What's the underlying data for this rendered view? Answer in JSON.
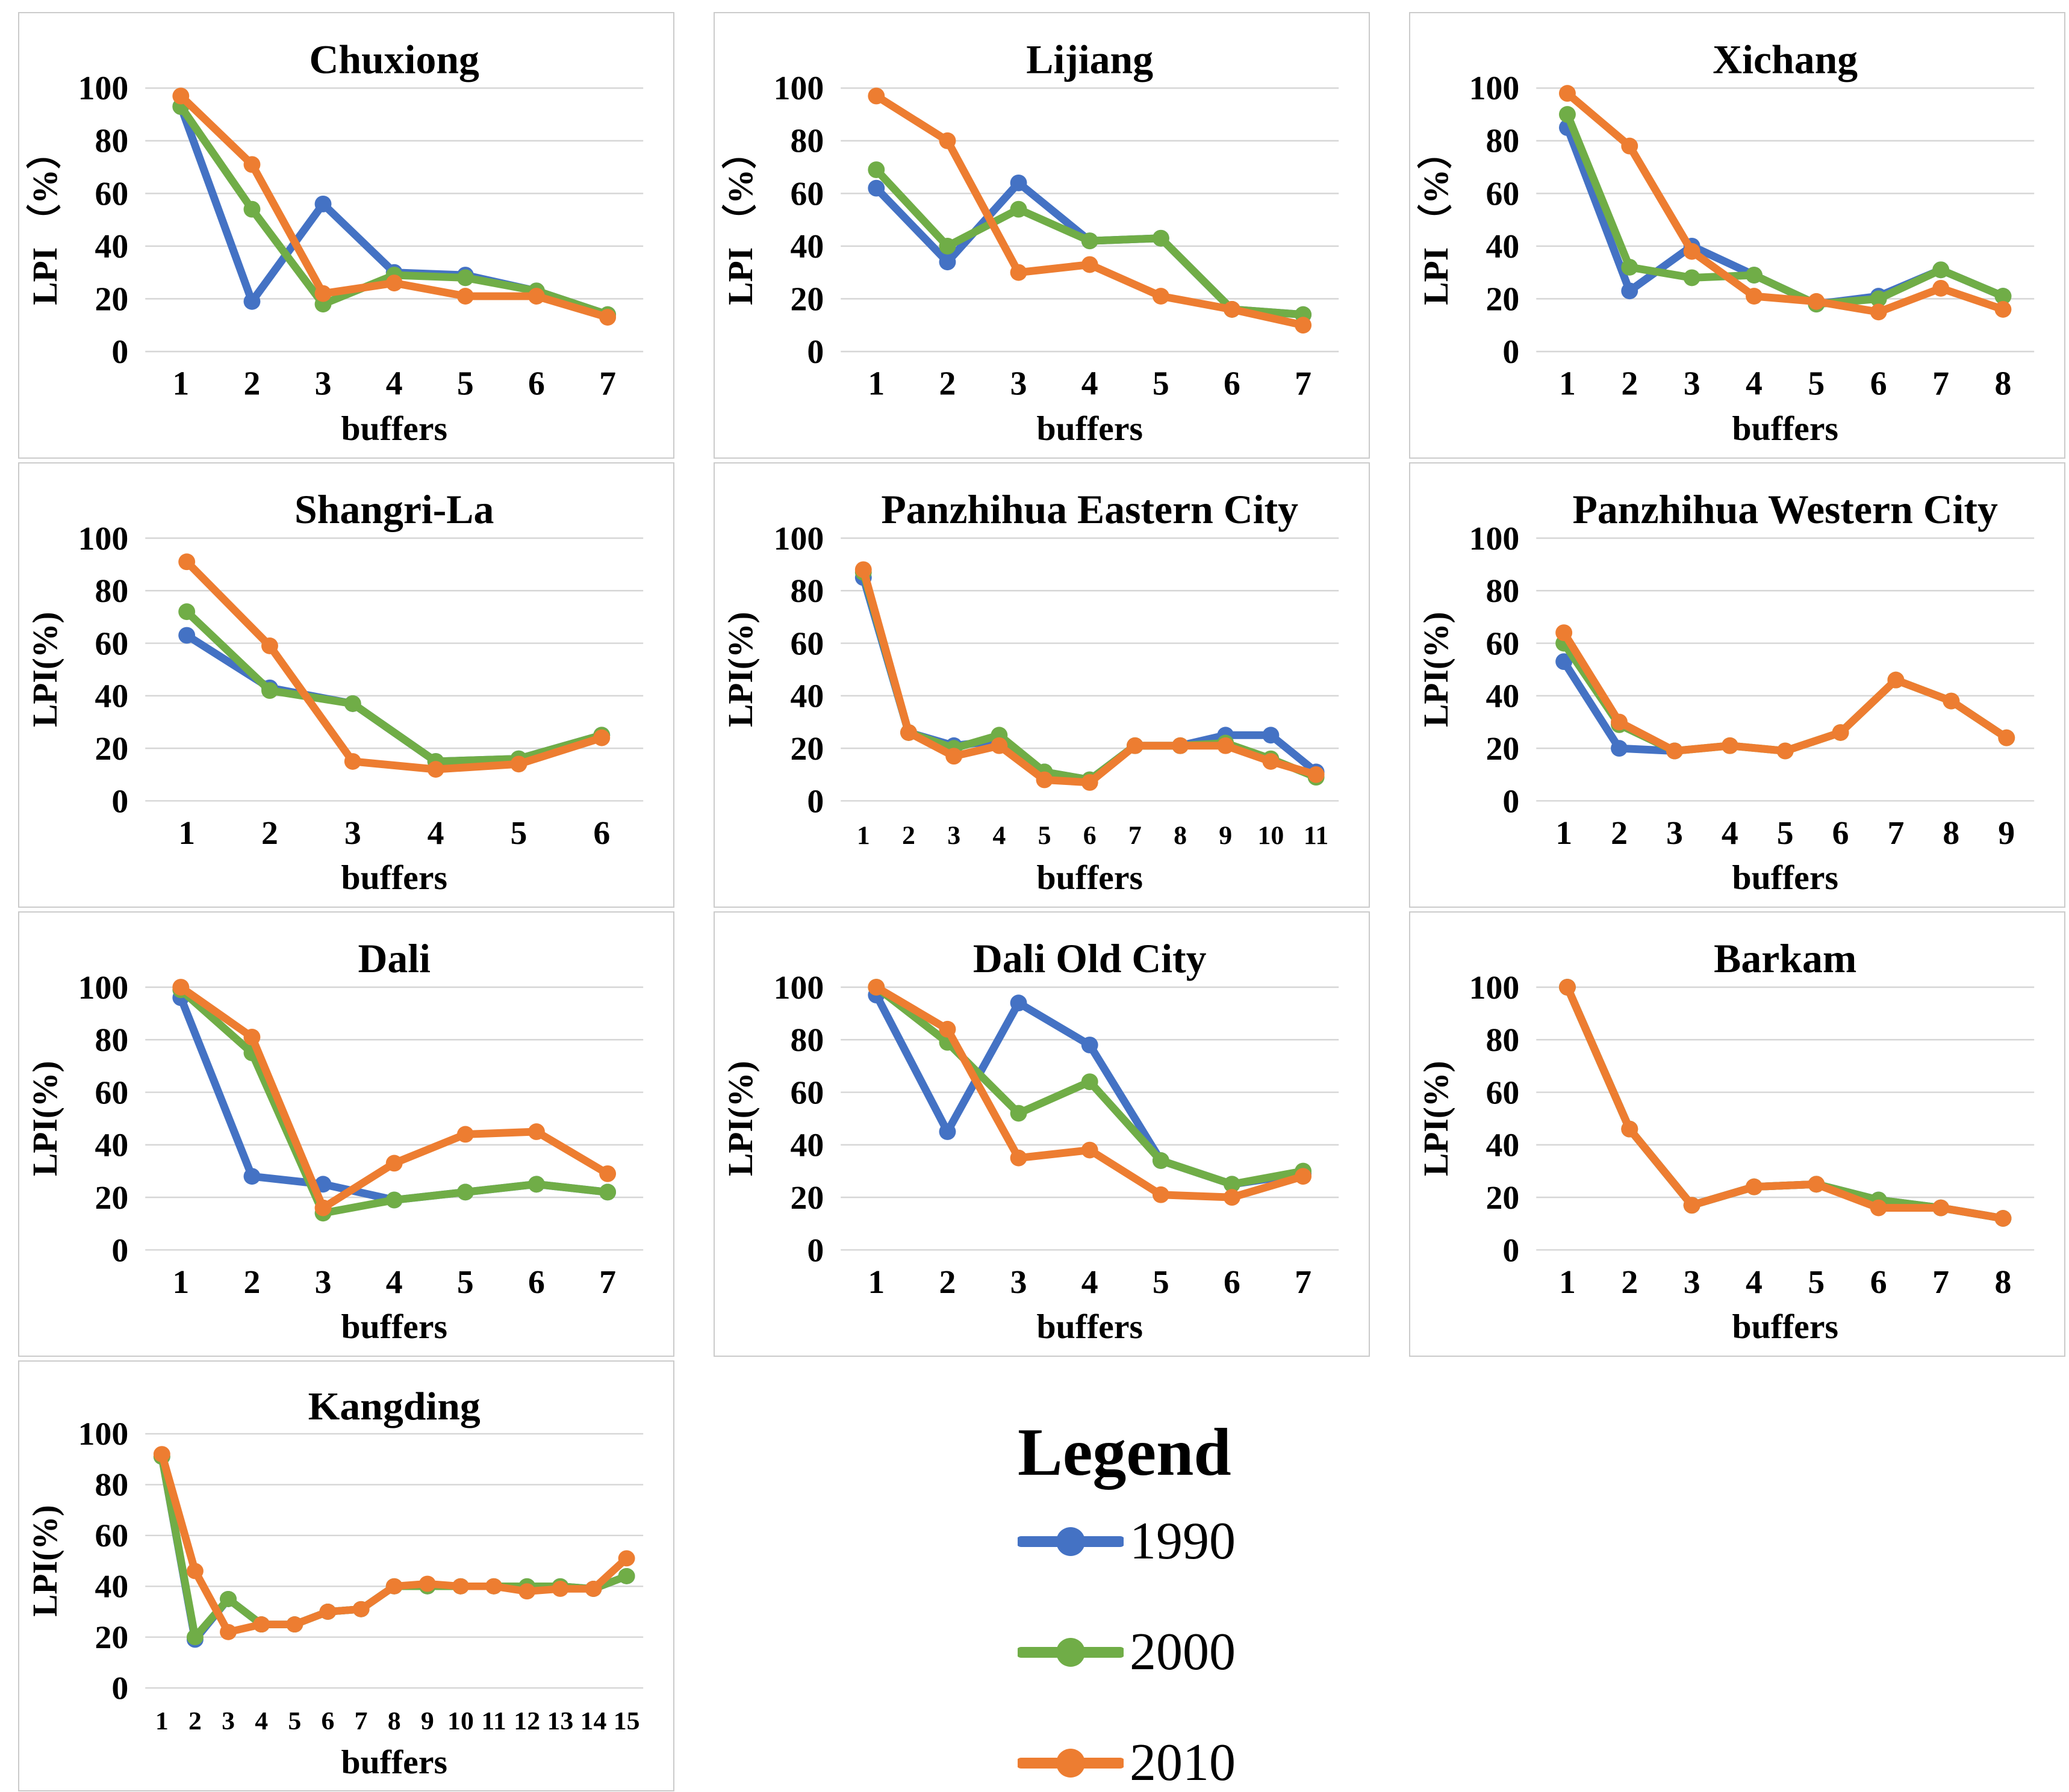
{
  "figure": {
    "background": "#ffffff",
    "box_border_color": "#cbcbcb",
    "gridline_color": "#d6d6d6",
    "text_color": "#000000"
  },
  "legend": {
    "title": "Legend",
    "entries": [
      {
        "label": "1990",
        "color": "#4472C4"
      },
      {
        "label": "2000",
        "color": "#70AD47"
      },
      {
        "label": "2010",
        "color": "#ED7D31"
      }
    ]
  },
  "chart_data": [
    {
      "type": "line",
      "title": "Chuxiong",
      "xlabel": "buffers",
      "ylabel": "LPI （%）",
      "ylim": [
        0,
        100
      ],
      "yticks": [
        0,
        20,
        40,
        60,
        80,
        100
      ],
      "grid": true,
      "legend_position": "none",
      "categories": [
        1,
        2,
        3,
        4,
        5,
        6,
        7
      ],
      "series": [
        {
          "name": "1990",
          "color": "#4472C4",
          "values": [
            93,
            19,
            56,
            30,
            29,
            23,
            14
          ]
        },
        {
          "name": "2000",
          "color": "#70AD47",
          "values": [
            93,
            54,
            18,
            29,
            28,
            23,
            14
          ]
        },
        {
          "name": "2010",
          "color": "#ED7D31",
          "values": [
            97,
            71,
            22,
            26,
            21,
            21,
            13
          ]
        }
      ]
    },
    {
      "type": "line",
      "title": "Lijiang",
      "xlabel": "buffers",
      "ylabel": "LPI （%）",
      "ylim": [
        0,
        100
      ],
      "yticks": [
        0,
        20,
        40,
        60,
        80,
        100
      ],
      "grid": true,
      "legend_position": "none",
      "categories": [
        1,
        2,
        3,
        4,
        5,
        6,
        7
      ],
      "series": [
        {
          "name": "1990",
          "color": "#4472C4",
          "values": [
            62,
            34,
            64,
            42,
            43,
            16,
            14
          ]
        },
        {
          "name": "2000",
          "color": "#70AD47",
          "values": [
            69,
            40,
            54,
            42,
            43,
            16,
            14
          ]
        },
        {
          "name": "2010",
          "color": "#ED7D31",
          "values": [
            97,
            80,
            30,
            33,
            21,
            16,
            10
          ]
        }
      ]
    },
    {
      "type": "line",
      "title": "Xichang",
      "xlabel": "buffers",
      "ylabel": "LPI （%）",
      "ylim": [
        0,
        100
      ],
      "yticks": [
        0,
        20,
        40,
        60,
        80,
        100
      ],
      "grid": true,
      "legend_position": "none",
      "categories": [
        1,
        2,
        3,
        4,
        5,
        6,
        7,
        8
      ],
      "series": [
        {
          "name": "1990",
          "color": "#4472C4",
          "values": [
            85,
            23,
            40,
            29,
            18,
            21,
            31,
            21
          ]
        },
        {
          "name": "2000",
          "color": "#70AD47",
          "values": [
            90,
            32,
            28,
            29,
            18,
            20,
            31,
            21
          ]
        },
        {
          "name": "2010",
          "color": "#ED7D31",
          "values": [
            98,
            78,
            38,
            21,
            19,
            15,
            24,
            16
          ]
        }
      ]
    },
    {
      "type": "line",
      "title": "Shangri-La",
      "xlabel": "buffers",
      "ylabel": "LPI(%)",
      "ylim": [
        0,
        100
      ],
      "yticks": [
        0,
        20,
        40,
        60,
        80,
        100
      ],
      "grid": true,
      "legend_position": "none",
      "categories": [
        1,
        2,
        3,
        4,
        5,
        6
      ],
      "series": [
        {
          "name": "1990",
          "color": "#4472C4",
          "values": [
            63,
            43,
            37,
            15,
            16,
            25
          ]
        },
        {
          "name": "2000",
          "color": "#70AD47",
          "values": [
            72,
            42,
            37,
            15,
            16,
            25
          ]
        },
        {
          "name": "2010",
          "color": "#ED7D31",
          "values": [
            91,
            59,
            15,
            12,
            14,
            24
          ]
        }
      ]
    },
    {
      "type": "line",
      "title": "Panzhihua Eastern City",
      "xlabel": "buffers",
      "ylabel": "LPI(%)",
      "ylim": [
        0,
        100
      ],
      "yticks": [
        0,
        20,
        40,
        60,
        80,
        100
      ],
      "grid": true,
      "legend_position": "none",
      "categories": [
        1,
        2,
        3,
        4,
        5,
        6,
        7,
        8,
        9,
        10,
        11
      ],
      "series": [
        {
          "name": "1990",
          "color": "#4472C4",
          "values": [
            85,
            26,
            21,
            23,
            11,
            8,
            21,
            21,
            25,
            25,
            11
          ]
        },
        {
          "name": "2000",
          "color": "#70AD47",
          "values": [
            87,
            26,
            20,
            25,
            11,
            8,
            21,
            21,
            22,
            16,
            9
          ]
        },
        {
          "name": "2010",
          "color": "#ED7D31",
          "values": [
            88,
            26,
            17,
            21,
            8,
            7,
            21,
            21,
            21,
            15,
            10
          ]
        }
      ]
    },
    {
      "type": "line",
      "title": "Panzhihua Western City",
      "xlabel": "buffers",
      "ylabel": "LPI(%)",
      "ylim": [
        0,
        100
      ],
      "yticks": [
        0,
        20,
        40,
        60,
        80,
        100
      ],
      "grid": true,
      "legend_position": "none",
      "categories": [
        1,
        2,
        3,
        4,
        5,
        6,
        7,
        8,
        9
      ],
      "series": [
        {
          "name": "1990",
          "color": "#4472C4",
          "values": [
            53,
            20,
            19,
            null,
            null,
            null,
            null,
            null,
            null
          ]
        },
        {
          "name": "2000",
          "color": "#70AD47",
          "values": [
            60,
            29,
            19,
            21,
            19,
            26,
            46,
            38,
            24
          ]
        },
        {
          "name": "2010",
          "color": "#ED7D31",
          "values": [
            64,
            30,
            19,
            21,
            19,
            26,
            46,
            38,
            24
          ]
        }
      ]
    },
    {
      "type": "line",
      "title": "Dali",
      "xlabel": "buffers",
      "ylabel": "LPI(%)",
      "ylim": [
        0,
        100
      ],
      "yticks": [
        0,
        20,
        40,
        60,
        80,
        100
      ],
      "grid": true,
      "legend_position": "none",
      "categories": [
        1,
        2,
        3,
        4,
        5,
        6,
        7
      ],
      "series": [
        {
          "name": "1990",
          "color": "#4472C4",
          "values": [
            96,
            28,
            25,
            19,
            22,
            25,
            22
          ]
        },
        {
          "name": "2000",
          "color": "#70AD47",
          "values": [
            99,
            75,
            14,
            19,
            22,
            25,
            22
          ]
        },
        {
          "name": "2010",
          "color": "#ED7D31",
          "values": [
            100,
            81,
            16,
            33,
            44,
            45,
            29
          ]
        }
      ]
    },
    {
      "type": "line",
      "title": "Dali Old City",
      "xlabel": "buffers",
      "ylabel": "LPI(%)",
      "ylim": [
        0,
        100
      ],
      "yticks": [
        0,
        20,
        40,
        60,
        80,
        100
      ],
      "grid": true,
      "legend_position": "none",
      "categories": [
        1,
        2,
        3,
        4,
        5,
        6,
        7
      ],
      "series": [
        {
          "name": "1990",
          "color": "#4472C4",
          "values": [
            97,
            45,
            94,
            78,
            34,
            25,
            29
          ]
        },
        {
          "name": "2000",
          "color": "#70AD47",
          "values": [
            100,
            79,
            52,
            64,
            34,
            25,
            30
          ]
        },
        {
          "name": "2010",
          "color": "#ED7D31",
          "values": [
            100,
            84,
            35,
            38,
            21,
            20,
            28
          ]
        }
      ]
    },
    {
      "type": "line",
      "title": "Barkam",
      "xlabel": "buffers",
      "ylabel": "LPI(%)",
      "ylim": [
        0,
        100
      ],
      "yticks": [
        0,
        20,
        40,
        60,
        80,
        100
      ],
      "grid": true,
      "legend_position": "none",
      "categories": [
        1,
        2,
        3,
        4,
        5,
        6,
        7,
        8
      ],
      "series": [
        {
          "name": "1990",
          "color": "#4472C4",
          "values": [
            100,
            46,
            17,
            24,
            25,
            19,
            16,
            12
          ]
        },
        {
          "name": "2000",
          "color": "#70AD47",
          "values": [
            100,
            46,
            17,
            24,
            25,
            19,
            16,
            12
          ]
        },
        {
          "name": "2010",
          "color": "#ED7D31",
          "values": [
            100,
            46,
            17,
            24,
            25,
            16,
            16,
            12
          ]
        }
      ]
    },
    {
      "type": "line",
      "title": "Kangding",
      "xlabel": "buffers",
      "ylabel": "LPI(%)",
      "ylim": [
        0,
        100
      ],
      "yticks": [
        0,
        20,
        40,
        60,
        80,
        100
      ],
      "grid": true,
      "legend_position": "none",
      "categories": [
        1,
        2,
        3,
        4,
        5,
        6,
        7,
        8,
        9,
        10,
        11,
        12,
        13,
        14,
        15
      ],
      "series": [
        {
          "name": "1990",
          "color": "#4472C4",
          "values": [
            91,
            19,
            35,
            25,
            25,
            30,
            31,
            40,
            40,
            40,
            40,
            40,
            40,
            39,
            44
          ]
        },
        {
          "name": "2000",
          "color": "#70AD47",
          "values": [
            91,
            20,
            35,
            25,
            25,
            30,
            31,
            40,
            40,
            40,
            40,
            40,
            40,
            39,
            44
          ]
        },
        {
          "name": "2010",
          "color": "#ED7D31",
          "values": [
            92,
            46,
            22,
            25,
            25,
            30,
            31,
            40,
            41,
            40,
            40,
            38,
            39,
            39,
            51
          ]
        }
      ]
    }
  ]
}
